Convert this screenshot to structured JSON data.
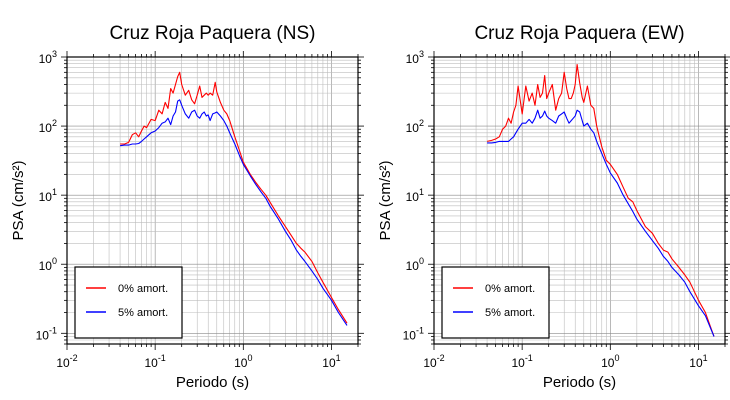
{
  "chart_data": [
    {
      "type": "line",
      "title": "Cruz Roja Paquera (NS)",
      "xlabel": "Periodo (s)",
      "ylabel": "PSA (cm/s²)",
      "xscale": "log",
      "yscale": "log",
      "xlim": [
        0.01,
        20
      ],
      "ylim": [
        0.07,
        1000
      ],
      "grid": true,
      "legend_position": "lower-left",
      "series": [
        {
          "name": "0% amort.",
          "color": "#ff0000",
          "x": [
            0.04,
            0.045,
            0.05,
            0.055,
            0.06,
            0.065,
            0.07,
            0.075,
            0.08,
            0.09,
            0.1,
            0.11,
            0.12,
            0.13,
            0.14,
            0.15,
            0.16,
            0.17,
            0.18,
            0.19,
            0.2,
            0.22,
            0.24,
            0.26,
            0.28,
            0.3,
            0.32,
            0.34,
            0.36,
            0.38,
            0.4,
            0.42,
            0.45,
            0.48,
            0.5,
            0.55,
            0.6,
            0.65,
            0.7,
            0.8,
            0.9,
            1.0,
            1.2,
            1.4,
            1.6,
            1.8,
            2.0,
            2.5,
            3.0,
            3.5,
            4.0,
            4.5,
            5.0,
            6.0,
            7.0,
            8.0,
            10.0,
            12.0,
            15.0
          ],
          "y": [
            55,
            55,
            58,
            75,
            80,
            70,
            85,
            100,
            95,
            125,
            120,
            170,
            150,
            220,
            180,
            350,
            300,
            400,
            520,
            600,
            400,
            280,
            330,
            240,
            210,
            280,
            380,
            260,
            280,
            300,
            280,
            300,
            280,
            430,
            310,
            220,
            170,
            150,
            120,
            70,
            45,
            30,
            20,
            15,
            12,
            10,
            8.0,
            5.0,
            3.5,
            2.6,
            2.0,
            1.7,
            1.5,
            1.1,
            0.75,
            0.55,
            0.33,
            0.22,
            0.14
          ]
        },
        {
          "name": "5% amort.",
          "color": "#0000ff",
          "x": [
            0.04,
            0.045,
            0.05,
            0.055,
            0.06,
            0.065,
            0.07,
            0.075,
            0.08,
            0.09,
            0.1,
            0.11,
            0.12,
            0.13,
            0.14,
            0.15,
            0.16,
            0.17,
            0.18,
            0.19,
            0.2,
            0.22,
            0.24,
            0.26,
            0.28,
            0.3,
            0.32,
            0.34,
            0.36,
            0.38,
            0.4,
            0.42,
            0.45,
            0.48,
            0.5,
            0.55,
            0.6,
            0.65,
            0.7,
            0.8,
            0.9,
            1.0,
            1.2,
            1.4,
            1.6,
            1.8,
            2.0,
            2.5,
            3.0,
            3.5,
            4.0,
            4.5,
            5.0,
            6.0,
            7.0,
            8.0,
            10.0,
            12.0,
            15.0
          ],
          "y": [
            52,
            53,
            53,
            55,
            55,
            56,
            60,
            65,
            70,
            80,
            85,
            95,
            110,
            115,
            130,
            105,
            140,
            160,
            230,
            240,
            200,
            150,
            130,
            160,
            170,
            140,
            130,
            150,
            160,
            140,
            145,
            120,
            150,
            155,
            160,
            140,
            120,
            100,
            80,
            55,
            38,
            28,
            19,
            14,
            11,
            9.0,
            7.0,
            4.5,
            3.0,
            2.2,
            1.6,
            1.3,
            1.1,
            0.8,
            0.6,
            0.45,
            0.3,
            0.2,
            0.13
          ]
        }
      ]
    },
    {
      "type": "line",
      "title": "Cruz Roja Paquera (EW)",
      "xlabel": "Periodo (s)",
      "ylabel": "PSA (cm/s²)",
      "xscale": "log",
      "yscale": "log",
      "xlim": [
        0.01,
        20
      ],
      "ylim": [
        0.07,
        1000
      ],
      "grid": true,
      "legend_position": "lower-left",
      "series": [
        {
          "name": "0% amort.",
          "color": "#ff0000",
          "x": [
            0.04,
            0.045,
            0.05,
            0.055,
            0.06,
            0.065,
            0.07,
            0.075,
            0.08,
            0.085,
            0.09,
            0.1,
            0.11,
            0.12,
            0.13,
            0.14,
            0.15,
            0.16,
            0.17,
            0.18,
            0.19,
            0.2,
            0.22,
            0.24,
            0.26,
            0.28,
            0.3,
            0.32,
            0.34,
            0.36,
            0.38,
            0.4,
            0.42,
            0.45,
            0.48,
            0.5,
            0.55,
            0.6,
            0.65,
            0.7,
            0.8,
            0.9,
            1.0,
            1.2,
            1.4,
            1.6,
            1.8,
            2.0,
            2.5,
            3.0,
            3.5,
            4.0,
            4.5,
            5.0,
            6.0,
            7.0,
            8.0,
            10.0,
            12.0,
            15.0
          ],
          "y": [
            60,
            62,
            65,
            70,
            90,
            100,
            130,
            110,
            160,
            200,
            380,
            150,
            380,
            230,
            300,
            200,
            400,
            260,
            300,
            540,
            250,
            300,
            400,
            170,
            250,
            300,
            600,
            350,
            250,
            250,
            300,
            400,
            780,
            420,
            260,
            220,
            380,
            200,
            180,
            100,
            50,
            32,
            28,
            20,
            13,
            9,
            8,
            6,
            3.5,
            2.8,
            2.0,
            1.6,
            1.5,
            1.2,
            0.9,
            0.7,
            0.55,
            0.3,
            0.2,
            0.09
          ]
        },
        {
          "name": "5% amort.",
          "color": "#0000ff",
          "x": [
            0.04,
            0.045,
            0.05,
            0.055,
            0.06,
            0.065,
            0.07,
            0.075,
            0.08,
            0.085,
            0.09,
            0.1,
            0.11,
            0.12,
            0.13,
            0.14,
            0.15,
            0.16,
            0.17,
            0.18,
            0.19,
            0.2,
            0.22,
            0.24,
            0.26,
            0.28,
            0.3,
            0.32,
            0.34,
            0.36,
            0.38,
            0.4,
            0.42,
            0.45,
            0.48,
            0.5,
            0.55,
            0.6,
            0.65,
            0.7,
            0.8,
            0.9,
            1.0,
            1.2,
            1.4,
            1.6,
            1.8,
            2.0,
            2.5,
            3.0,
            3.5,
            4.0,
            4.5,
            5.0,
            6.0,
            7.0,
            8.0,
            10.0,
            12.0,
            15.0
          ],
          "y": [
            57,
            57,
            58,
            60,
            60,
            60,
            60,
            65,
            70,
            80,
            90,
            110,
            110,
            125,
            110,
            130,
            170,
            130,
            140,
            165,
            140,
            130,
            120,
            110,
            140,
            150,
            160,
            130,
            110,
            120,
            130,
            140,
            170,
            160,
            120,
            100,
            110,
            90,
            80,
            60,
            40,
            28,
            21,
            15,
            10,
            7.5,
            5.8,
            4.5,
            3.0,
            2.2,
            1.7,
            1.3,
            1.1,
            0.9,
            0.7,
            0.55,
            0.4,
            0.25,
            0.18,
            0.09
          ]
        }
      ]
    }
  ]
}
